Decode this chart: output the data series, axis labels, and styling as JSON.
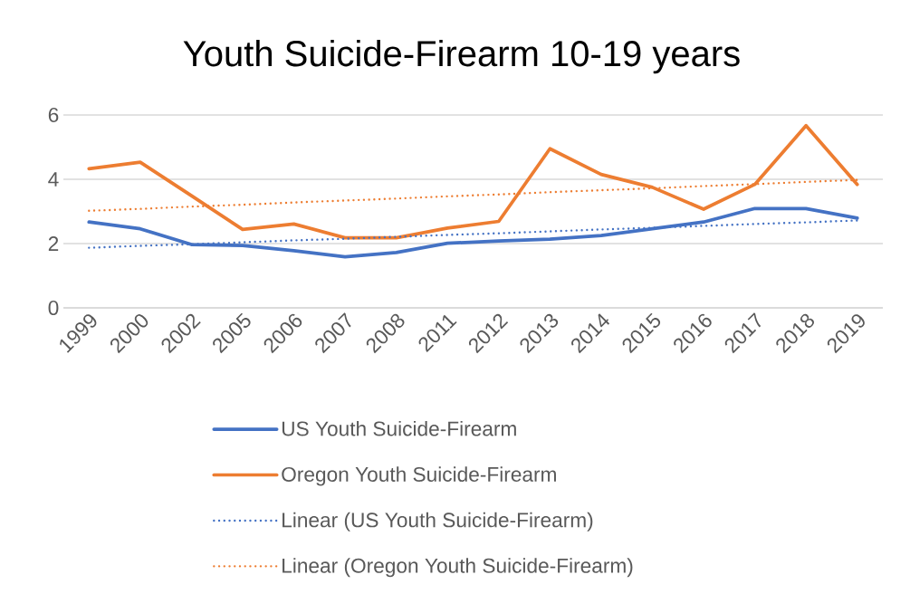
{
  "chart_data": {
    "type": "line",
    "title": "Youth Suicide-Firearm 10-19 years",
    "categories": [
      "1999",
      "2000",
      "2002",
      "2005",
      "2006",
      "2007",
      "2008",
      "2011",
      "2012",
      "2013",
      "2014",
      "2015",
      "2016",
      "2017",
      "2018",
      "2019"
    ],
    "series": [
      {
        "name": "US Youth Suicide-Firearm",
        "color": "#4472c4",
        "line_style": "solid",
        "values": [
          2.67,
          2.46,
          1.97,
          1.94,
          1.78,
          1.59,
          1.72,
          2.01,
          2.08,
          2.14,
          2.25,
          2.46,
          2.67,
          3.09,
          3.09,
          2.79
        ]
      },
      {
        "name": "Oregon Youth Suicide-Firearm",
        "color": "#ed7d31",
        "line_style": "solid",
        "values": [
          4.33,
          4.53,
          3.49,
          2.44,
          2.61,
          2.18,
          2.18,
          2.48,
          2.69,
          4.95,
          4.15,
          3.75,
          3.07,
          3.84,
          5.67,
          3.84
        ]
      },
      {
        "name": "Linear (US Youth Suicide-Firearm)",
        "color": "#4472c4",
        "line_style": "dotted",
        "values": [
          1.87,
          1.93,
          1.98,
          2.04,
          2.1,
          2.15,
          2.21,
          2.27,
          2.32,
          2.38,
          2.44,
          2.49,
          2.55,
          2.61,
          2.66,
          2.72
        ]
      },
      {
        "name": "Linear (Oregon Youth Suicide-Firearm)",
        "color": "#ed7d31",
        "line_style": "dotted",
        "values": [
          3.02,
          3.08,
          3.15,
          3.21,
          3.28,
          3.34,
          3.4,
          3.47,
          3.53,
          3.6,
          3.66,
          3.72,
          3.79,
          3.85,
          3.92,
          3.98
        ]
      }
    ],
    "ylim": [
      0,
      6
    ],
    "yticks": [
      0,
      2,
      4,
      6
    ],
    "grid": "y",
    "legend": "bottom",
    "marker": "none"
  }
}
